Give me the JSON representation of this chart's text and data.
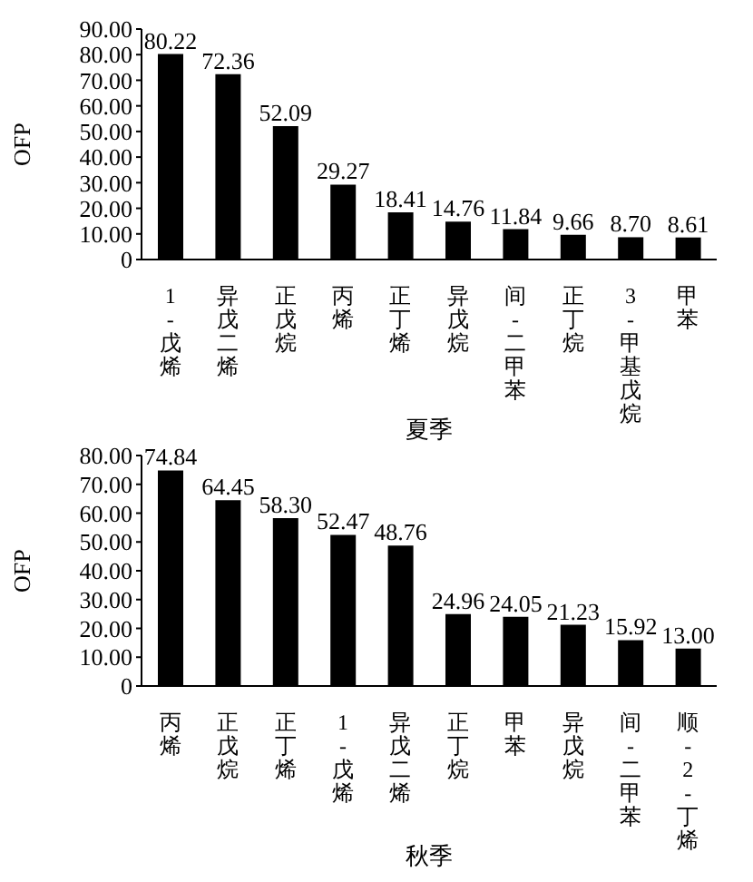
{
  "chart_data": [
    {
      "type": "bar",
      "xlabel": "夏季",
      "ylabel": "OFP",
      "categories": [
        "1-戊烯",
        "异戊二烯",
        "正戊烷",
        "丙烯",
        "正丁烯",
        "异戊烷",
        "间-二甲苯",
        "正丁烷",
        "3-甲基戊烷",
        "甲苯"
      ],
      "values": [
        80.22,
        72.36,
        52.09,
        29.27,
        18.41,
        14.76,
        11.84,
        9.66,
        8.7,
        8.61
      ],
      "value_labels": [
        "80.22",
        "72.36",
        "52.09",
        "29.27",
        "18.41",
        "14.76",
        "11.84",
        "9.66",
        "8.70",
        "8.61"
      ],
      "color": "#000000",
      "ylim": [
        0,
        90
      ],
      "yticks": [
        0,
        {
          "value": 10,
          "label": "10.00"
        },
        {
          "value": 20,
          "label": "20.00"
        },
        {
          "value": 30,
          "label": "30.00"
        },
        {
          "value": 40,
          "label": "40.00"
        },
        {
          "value": 50,
          "label": "50.00"
        },
        {
          "value": 60,
          "label": "60.00"
        },
        {
          "value": 70,
          "label": "70.00"
        },
        {
          "value": 80,
          "label": "80.00"
        },
        {
          "value": 90,
          "label": "90.00"
        }
      ],
      "grid": false,
      "legend": false
    },
    {
      "type": "bar",
      "xlabel": "秋季",
      "ylabel": "OFP",
      "categories": [
        "丙烯",
        "正戊烷",
        "正丁烯",
        "1-戊烯",
        "异戊二烯",
        "正丁烷",
        "甲苯",
        "异戊烷",
        "间-二甲苯",
        "顺-2-丁烯"
      ],
      "values": [
        74.84,
        64.45,
        58.3,
        52.47,
        48.76,
        24.96,
        24.05,
        21.23,
        15.92,
        13.0
      ],
      "value_labels": [
        "74.84",
        "64.45",
        "58.30",
        "52.47",
        "48.76",
        "24.96",
        "24.05",
        "21.23",
        "15.92",
        "13.00"
      ],
      "color": "#000000",
      "ylim": [
        0,
        80
      ],
      "yticks": [
        0,
        {
          "value": 10,
          "label": "10.00"
        },
        {
          "value": 20,
          "label": "20.00"
        },
        {
          "value": 30,
          "label": "30.00"
        },
        {
          "value": 40,
          "label": "40.00"
        },
        {
          "value": 50,
          "label": "50.00"
        },
        {
          "value": 60,
          "label": "60.00"
        },
        {
          "value": 70,
          "label": "70.00"
        },
        {
          "value": 80,
          "label": "80.00"
        }
      ],
      "grid": false,
      "legend": false
    }
  ]
}
